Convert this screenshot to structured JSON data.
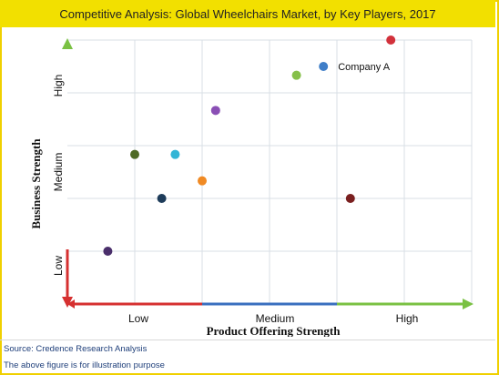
{
  "title": "Competitive Analysis: Global Wheelchairs Market, by Key Players, 2017",
  "footnotes": {
    "source": "Source: Credence Research Analysis",
    "disclaimer": "The above figure is for illustration purpose"
  },
  "chart_data": {
    "type": "scatter",
    "title": "Competitive Analysis: Global Wheelchairs Market, by Key Players, 2017",
    "xlabel": "Product Offering Strength",
    "ylabel": "Business Strength",
    "x_ticks": [
      "Low",
      "Medium",
      "High"
    ],
    "y_ticks": [
      "Low",
      "Medium",
      "High"
    ],
    "xlim": [
      0,
      3
    ],
    "ylim": [
      0,
      3
    ],
    "grid": true,
    "points": [
      {
        "x": 0.3,
        "y": 0.6,
        "color": "#4a2f6b",
        "label": ""
      },
      {
        "x": 0.5,
        "y": 1.7,
        "color": "#4e6a24",
        "label": ""
      },
      {
        "x": 0.7,
        "y": 1.2,
        "color": "#1e3c5a",
        "label": ""
      },
      {
        "x": 0.8,
        "y": 1.7,
        "color": "#33b5d6",
        "label": ""
      },
      {
        "x": 1.0,
        "y": 1.4,
        "color": "#f08a24",
        "label": ""
      },
      {
        "x": 1.1,
        "y": 2.2,
        "color": "#8a4fb5",
        "label": ""
      },
      {
        "x": 1.7,
        "y": 2.6,
        "color": "#86c04a",
        "label": ""
      },
      {
        "x": 1.9,
        "y": 2.7,
        "color": "#3f7ec8",
        "label": "Company A"
      },
      {
        "x": 2.1,
        "y": 1.2,
        "color": "#7a1f1f",
        "label": ""
      },
      {
        "x": 2.4,
        "y": 3.0,
        "color": "#d2313b",
        "label": ""
      }
    ],
    "colors": {
      "y_axis_top": "#7ac143",
      "y_axis_bottom": "#d63030",
      "x_axis_left": "#d63030",
      "x_axis_mid": "#3a6fbf",
      "x_axis_right": "#7ac143",
      "grid": "#d9dfe6",
      "axis_label": "#111111"
    }
  }
}
